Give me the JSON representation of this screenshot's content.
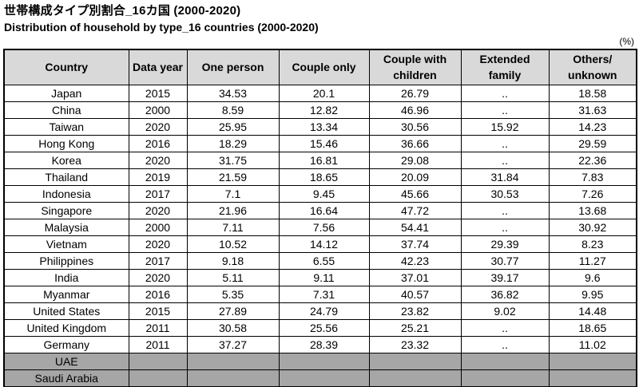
{
  "title": {
    "ja": "世帯構成タイプ別割合_16カ国 (2000-2020)",
    "en": "Distribution of household by type_16 countries (2000-2020)"
  },
  "unit_label": "(%)",
  "chart_data": {
    "type": "table",
    "columns": [
      "Country",
      "Data year",
      "One person",
      "Couple only",
      "Couple with\nchildren",
      "Extended\nfamily",
      "Others/\nunknown"
    ],
    "rows": [
      {
        "placeholder": false,
        "cells": [
          "Japan",
          "2015",
          "34.53",
          "20.1",
          "26.79",
          "..",
          "18.58"
        ]
      },
      {
        "placeholder": false,
        "cells": [
          "China",
          "2000",
          "8.59",
          "12.82",
          "46.96",
          "..",
          "31.63"
        ]
      },
      {
        "placeholder": false,
        "cells": [
          "Taiwan",
          "2020",
          "25.95",
          "13.34",
          "30.56",
          "15.92",
          "14.23"
        ]
      },
      {
        "placeholder": false,
        "cells": [
          "Hong Kong",
          "2016",
          "18.29",
          "15.46",
          "36.66",
          "..",
          "29.59"
        ]
      },
      {
        "placeholder": false,
        "cells": [
          "Korea",
          "2020",
          "31.75",
          "16.81",
          "29.08",
          "..",
          "22.36"
        ]
      },
      {
        "placeholder": false,
        "cells": [
          "Thailand",
          "2019",
          "21.59",
          "18.65",
          "20.09",
          "31.84",
          "7.83"
        ]
      },
      {
        "placeholder": false,
        "cells": [
          "Indonesia",
          "2017",
          "7.1",
          "9.45",
          "45.66",
          "30.53",
          "7.26"
        ]
      },
      {
        "placeholder": false,
        "cells": [
          "Singapore",
          "2020",
          "21.96",
          "16.64",
          "47.72",
          "..",
          "13.68"
        ]
      },
      {
        "placeholder": false,
        "cells": [
          "Malaysia",
          "2000",
          "7.11",
          "7.56",
          "54.41",
          "..",
          "30.92"
        ]
      },
      {
        "placeholder": false,
        "cells": [
          "Vietnam",
          "2020",
          "10.52",
          "14.12",
          "37.74",
          "29.39",
          "8.23"
        ]
      },
      {
        "placeholder": false,
        "cells": [
          "Philippines",
          "2017",
          "9.18",
          "6.55",
          "42.23",
          "30.77",
          "11.27"
        ]
      },
      {
        "placeholder": false,
        "cells": [
          "India",
          "2020",
          "5.11",
          "9.11",
          "37.01",
          "39.17",
          "9.6"
        ]
      },
      {
        "placeholder": false,
        "cells": [
          "Myanmar",
          "2016",
          "5.35",
          "7.31",
          "40.57",
          "36.82",
          "9.95"
        ]
      },
      {
        "placeholder": false,
        "cells": [
          "United States",
          "2015",
          "27.89",
          "24.79",
          "23.82",
          "9.02",
          "14.48"
        ]
      },
      {
        "placeholder": false,
        "cells": [
          "United Kingdom",
          "2011",
          "30.58",
          "25.56",
          "25.21",
          "..",
          "18.65"
        ]
      },
      {
        "placeholder": false,
        "cells": [
          "Germany",
          "2011",
          "37.27",
          "28.39",
          "23.32",
          "..",
          "11.02"
        ]
      },
      {
        "placeholder": true,
        "cells": [
          "UAE",
          "",
          "",
          "",
          "",
          "",
          ""
        ]
      },
      {
        "placeholder": true,
        "cells": [
          "Saudi Arabia",
          "",
          "",
          "",
          "",
          "",
          ""
        ]
      }
    ]
  },
  "colors": {
    "header_bg": "#d9d9d9",
    "placeholder_bg": "#a6a6a6",
    "border": "#000000",
    "text": "#000000"
  }
}
